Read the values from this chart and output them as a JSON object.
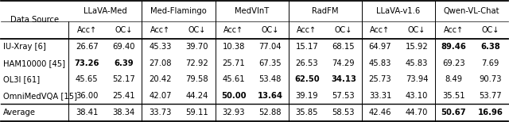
{
  "header_groups": [
    {
      "label": "LLaVA-Med",
      "cols": 2
    },
    {
      "label": "Med-Flamingo",
      "cols": 2
    },
    {
      "label": "MedVInT",
      "cols": 2
    },
    {
      "label": "RadFM",
      "cols": 2
    },
    {
      "label": "LLaVA-v1.6",
      "cols": 2
    },
    {
      "label": "Qwen-VL-Chat",
      "cols": 2
    }
  ],
  "row_labels": [
    "IU-Xray [6]",
    "HAM10000 [45]",
    "OL3I [61]",
    "OmniMedVQA [15]",
    "Average"
  ],
  "data": [
    [
      26.67,
      69.4,
      45.33,
      39.7,
      10.38,
      77.04,
      15.17,
      68.15,
      64.97,
      15.92,
      89.46,
      6.38
    ],
    [
      73.26,
      6.39,
      27.08,
      72.92,
      25.71,
      67.35,
      26.53,
      74.29,
      45.83,
      45.83,
      69.23,
      7.69
    ],
    [
      45.65,
      52.17,
      20.42,
      79.58,
      45.61,
      53.48,
      62.5,
      34.13,
      25.73,
      73.94,
      8.49,
      90.73
    ],
    [
      36.0,
      25.41,
      42.07,
      44.24,
      50.0,
      13.64,
      39.19,
      57.53,
      33.31,
      43.1,
      35.51,
      53.77
    ],
    [
      38.41,
      38.34,
      33.73,
      59.11,
      32.93,
      52.88,
      35.85,
      58.53,
      42.46,
      44.7,
      50.67,
      16.96
    ]
  ],
  "bold_cells": [
    [
      0,
      [
        10,
        11
      ]
    ],
    [
      1,
      [
        0,
        1
      ]
    ],
    [
      2,
      [
        6,
        7
      ]
    ],
    [
      3,
      [
        4,
        5
      ]
    ],
    [
      4,
      [
        10,
        11
      ]
    ]
  ],
  "bg_color": "#ffffff",
  "text_color": "#000000",
  "font_size": 7.2,
  "header_font_size": 7.2
}
